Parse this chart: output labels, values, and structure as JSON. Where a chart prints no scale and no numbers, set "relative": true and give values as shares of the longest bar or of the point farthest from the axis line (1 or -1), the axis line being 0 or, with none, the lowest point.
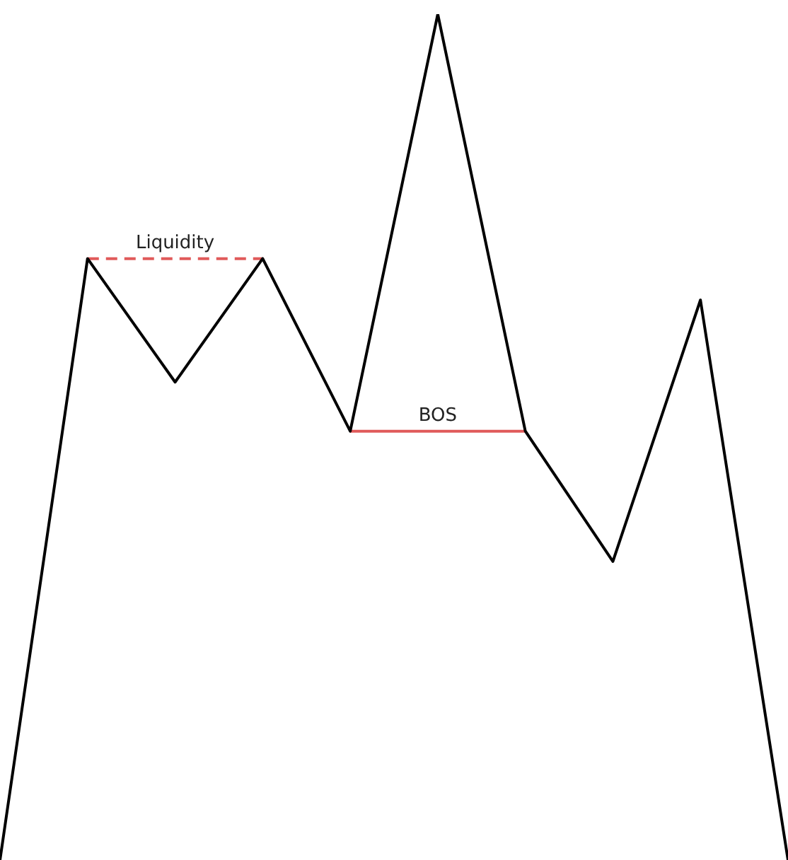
{
  "chart_data": {
    "type": "line",
    "relative": true,
    "marker": "none",
    "tick_labels": false,
    "categories": [
      null,
      null,
      null,
      null,
      null,
      null,
      null,
      null,
      null,
      null
    ],
    "series": [
      {
        "color": "#000000",
        "values": [
          0,
          0.711,
          0.565,
          0.711,
          0.507,
          1,
          0.507,
          0.353,
          0.662,
          0
        ]
      },
      {
        "name": "Liquidity",
        "color": "#e05a5a",
        "line_style": "dashed",
        "values": [
          null,
          0.711,
          0.711,
          0.711,
          null,
          null,
          null,
          null,
          null,
          null
        ]
      },
      {
        "name": "BOS",
        "color": "#e05a5a",
        "line_style": "solid",
        "values": [
          null,
          null,
          null,
          null,
          0.507,
          0.507,
          0.507,
          null,
          null,
          null
        ]
      }
    ]
  }
}
